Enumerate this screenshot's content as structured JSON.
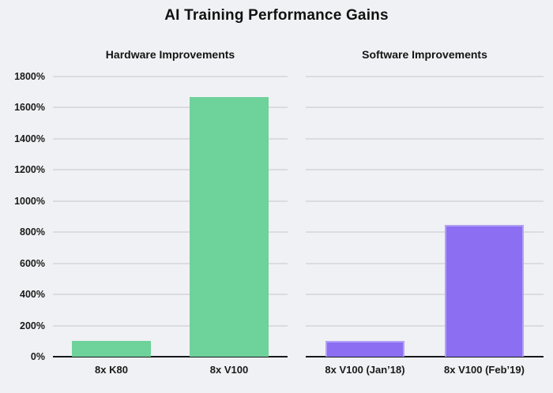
{
  "title": "AI Training Performance Gains",
  "y_axis": {
    "tick_labels": [
      "0%",
      "200%",
      "400%",
      "600%",
      "800%",
      "1000%",
      "1200%",
      "1400%",
      "1600%",
      "1800%"
    ],
    "tick_values": [
      0,
      200,
      400,
      600,
      800,
      1000,
      1200,
      1400,
      1600,
      1800
    ]
  },
  "chart_data": [
    {
      "type": "bar",
      "title": "Hardware Improvements",
      "categories": [
        "8x K80",
        "8x V100"
      ],
      "values": [
        100,
        1670
      ],
      "bar_color": "#6ed29b",
      "ylim": [
        0,
        1800
      ],
      "ylabel": "",
      "xlabel": "",
      "grid": true,
      "legend": "none"
    },
    {
      "type": "bar",
      "title": "Software Improvements",
      "categories": [
        "8x V100 (Jan’18)",
        "8x V100 (Feb’19)"
      ],
      "values": [
        100,
        845
      ],
      "bar_color": "#8b6ef2",
      "bar_border_color": "#b2a0f6",
      "ylim": [
        0,
        1800
      ],
      "ylabel": "",
      "xlabel": "",
      "grid": true,
      "legend": "none"
    }
  ],
  "colors": {
    "background": "#f0f1f4",
    "gridline": "#dbdbe0",
    "axis_line": "#17171c",
    "text": "#141414",
    "hardware_bar": "#6ed29b",
    "software_bar": "#8b6ef2"
  }
}
